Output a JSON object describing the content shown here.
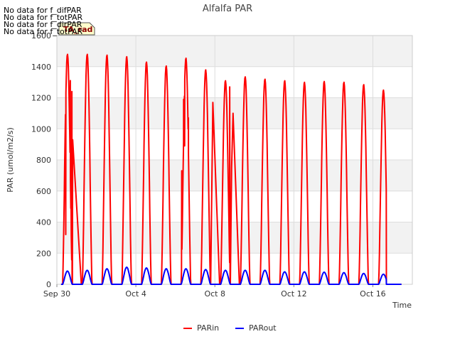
{
  "chart_data": {
    "type": "line",
    "title": "Alfalfa PAR",
    "xlabel": "Time",
    "ylabel": "PAR (umol/m2/s)",
    "badge": "TA_rad",
    "no_data_notes": [
      "No data for f_difPAR",
      "No data for f_totPAR",
      "No data for f_dirPAR",
      "No data for f_totPAR"
    ],
    "ylim": [
      0,
      1600
    ],
    "yticks": [
      0,
      200,
      400,
      600,
      800,
      1000,
      1200,
      1400,
      1600
    ],
    "xlim_days": [
      0,
      18
    ],
    "xticks": [
      {
        "day": 0,
        "label": "Sep 30"
      },
      {
        "day": 4,
        "label": "Oct 4"
      },
      {
        "day": 8,
        "label": "Oct 8"
      },
      {
        "day": 12,
        "label": "Oct 12"
      },
      {
        "day": 16,
        "label": "Oct 16"
      }
    ],
    "day_start": 0.29,
    "day_end": 0.78,
    "series": [
      {
        "name": "PARin",
        "color": "#ff0000",
        "daily_peak": [
          1480,
          1480,
          1475,
          1465,
          1430,
          1405,
          1455,
          1380,
          1310,
          1335,
          1320,
          1310,
          1300,
          1305,
          1300,
          1285,
          1250
        ],
        "last_day_end": 0.68,
        "spikes": [
          {
            "day": 0.45,
            "value": 320
          },
          {
            "day": 0.68,
            "value": 1310
          },
          {
            "day": 0.71,
            "value": 740
          },
          {
            "day": 0.76,
            "value": 1240
          },
          {
            "day": 0.8,
            "value": 930
          },
          {
            "day": 6.32,
            "value": 730
          },
          {
            "day": 6.42,
            "value": 1190
          },
          {
            "day": 6.47,
            "value": 890
          },
          {
            "day": 6.66,
            "value": 1070
          },
          {
            "day": 7.9,
            "value": 1170
          },
          {
            "day": 8.75,
            "value": 1270
          },
          {
            "day": 8.85,
            "value": 750
          },
          {
            "day": 8.92,
            "value": 1100
          }
        ]
      },
      {
        "name": "PARout",
        "color": "#0000ff",
        "daily_peak": [
          85,
          90,
          100,
          110,
          105,
          100,
          100,
          95,
          90,
          90,
          90,
          80,
          80,
          78,
          75,
          70,
          65
        ],
        "last_day_end": 0.68,
        "spikes": []
      }
    ],
    "legend": {
      "position": "bottom-center",
      "entries": [
        "PARin",
        "PARout"
      ]
    }
  }
}
